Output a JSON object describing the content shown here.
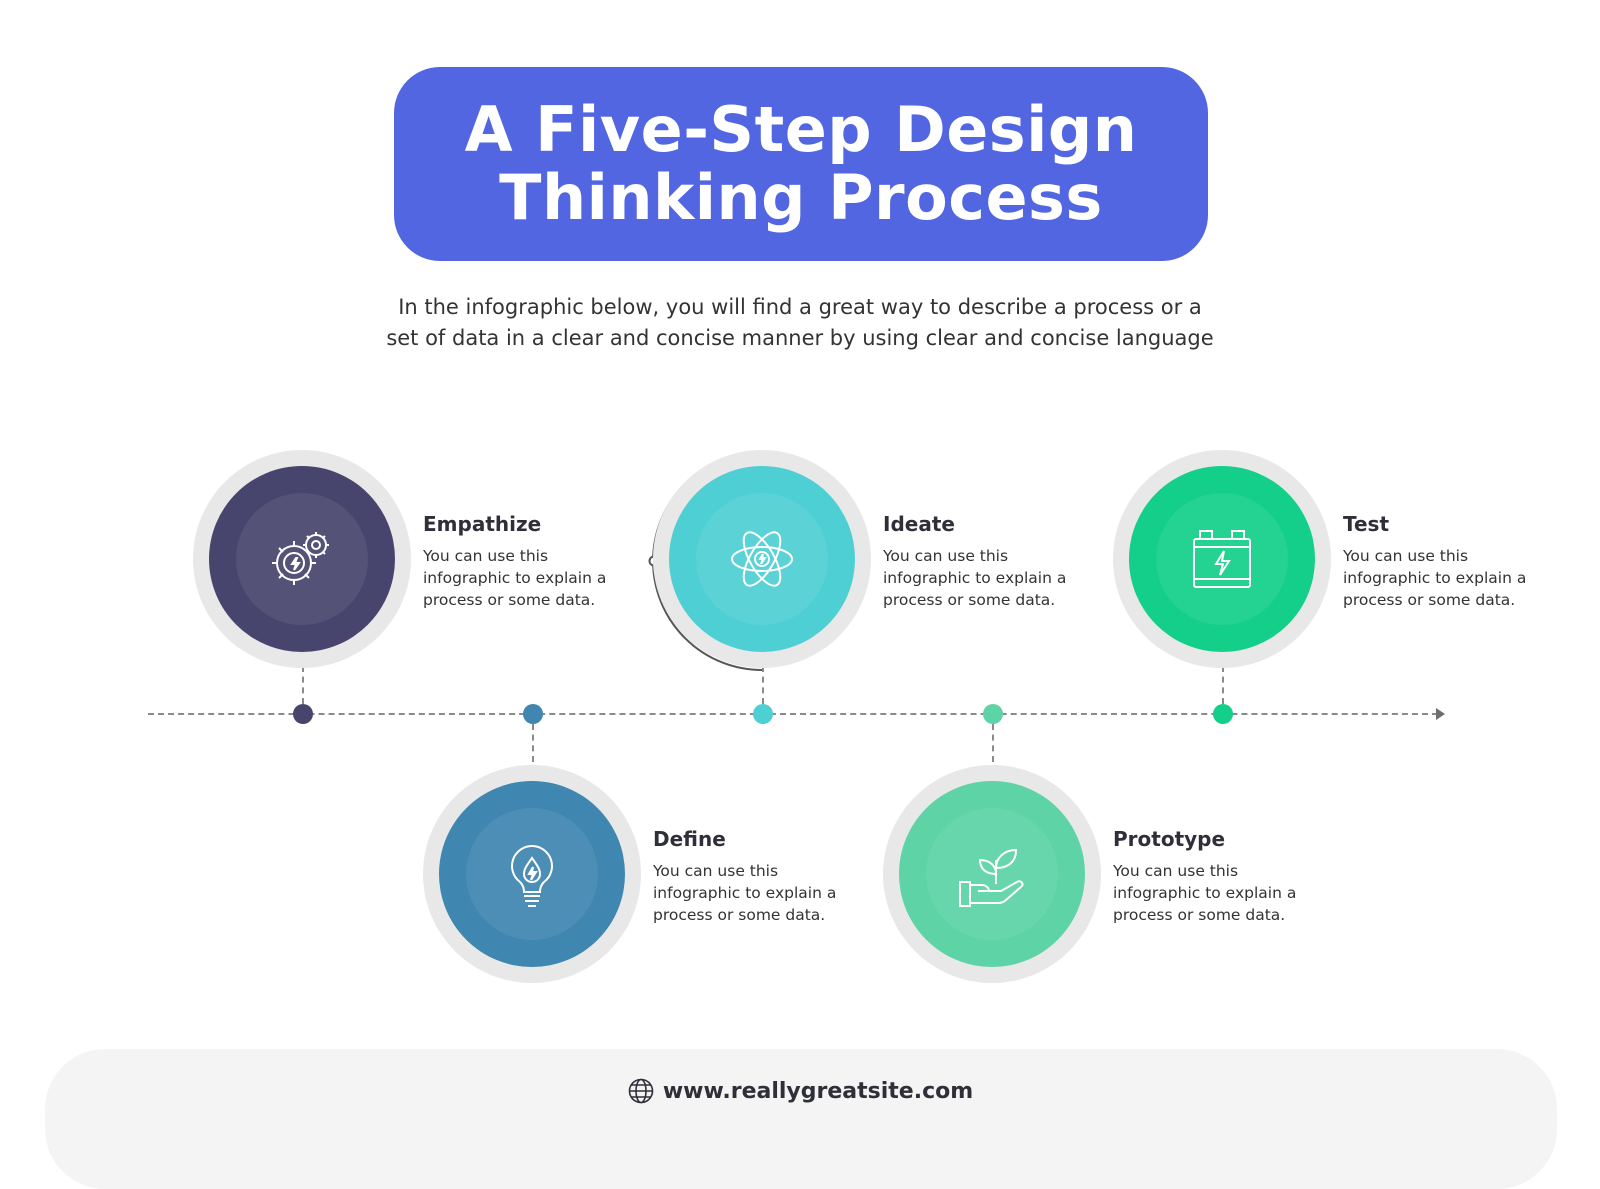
{
  "header": {
    "title_line1": "A Five-Step Design",
    "title_line2": "Thinking Process",
    "subtitle_line1": "In the infographic below, you will find a great way to describe a process or a",
    "subtitle_line2": "set of data in a clear and concise manner by using clear and concise language"
  },
  "colors": {
    "title_bg": "#5266e2",
    "empathize": "#47456d",
    "define": "#3f86b0",
    "ideate": "#4ecfd3",
    "prototype": "#5dd3a6",
    "test": "#14cf8a"
  },
  "steps": [
    {
      "title": "Empathize",
      "line1": "You can use this",
      "line2": "infographic to explain a",
      "line3": "process or some data.",
      "icon": "gear-bolt-icon"
    },
    {
      "title": "Define",
      "line1": "You can use this",
      "line2": "infographic to explain a",
      "line3": "process or some data.",
      "icon": "lightbulb-icon"
    },
    {
      "title": "Ideate",
      "line1": "You can use this",
      "line2": "infographic to explain a",
      "line3": "process or some data.",
      "icon": "atom-icon"
    },
    {
      "title": "Prototype",
      "line1": "You can use this",
      "line2": "infographic to explain a",
      "line3": "process or some data.",
      "icon": "hand-plant-icon"
    },
    {
      "title": "Test",
      "line1": "You can use this",
      "line2": "infographic to explain a",
      "line3": "process or some data.",
      "icon": "battery-icon"
    }
  ],
  "footer": {
    "url": "www.reallygreatsite.com",
    "icon": "globe-icon"
  }
}
